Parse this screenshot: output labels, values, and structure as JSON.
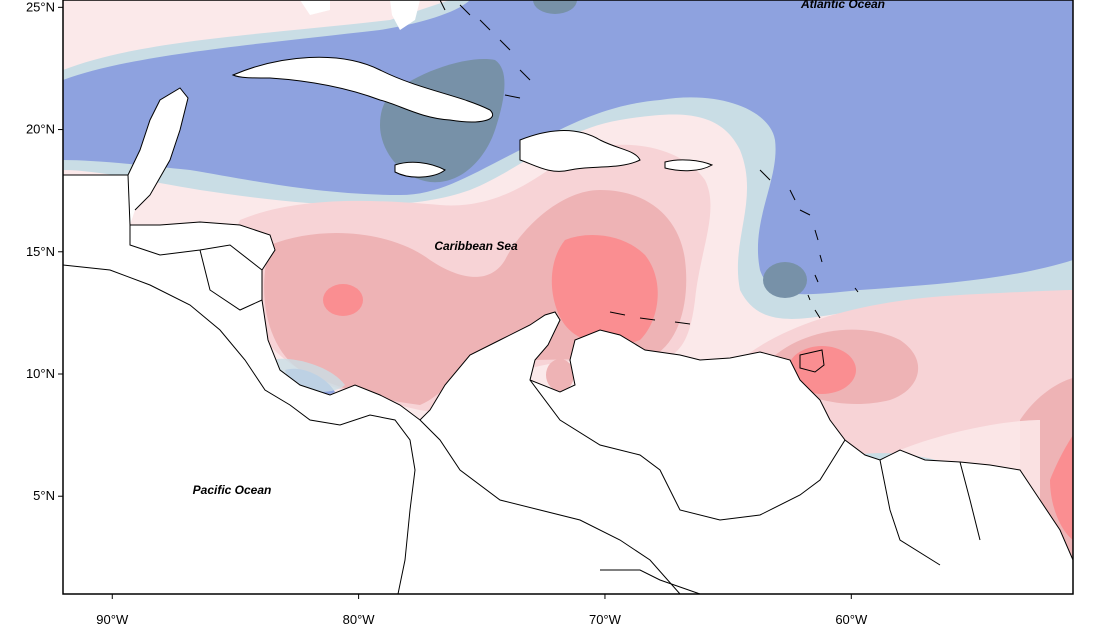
{
  "map": {
    "labels": {
      "atlantic": "Atlantic Ocean",
      "caribbean": "Caribbean Sea",
      "pacific": "Pacific Ocean"
    },
    "lat_ticks": [
      {
        "lat": 25,
        "label": "25°N"
      },
      {
        "lat": 20,
        "label": "20°N"
      },
      {
        "lat": 15,
        "label": "15°N"
      },
      {
        "lat": 10,
        "label": "10°N"
      },
      {
        "lat": 5,
        "label": "5°N"
      }
    ],
    "lon_ticks": [
      {
        "lon": -90,
        "label": "90°W"
      },
      {
        "lon": -80,
        "label": "80°W"
      },
      {
        "lon": -70,
        "label": "70°W"
      },
      {
        "lon": -60,
        "label": "60°W"
      }
    ],
    "extent": {
      "lon_min": -92.0,
      "lon_max": -51.0,
      "lat_min": 1.0,
      "lat_max": 25.3
    },
    "field_colors": {
      "strong_neg": "#4d5f86",
      "neg2": "#7791a8",
      "neg1": "#8ea2df",
      "neutral_cool": "#c9dde5",
      "neutral_warm": "#fbe9ea",
      "pos1": "#f7d3d6",
      "pos2": "#eeb3b5",
      "pos3": "#fa8e91"
    }
  }
}
